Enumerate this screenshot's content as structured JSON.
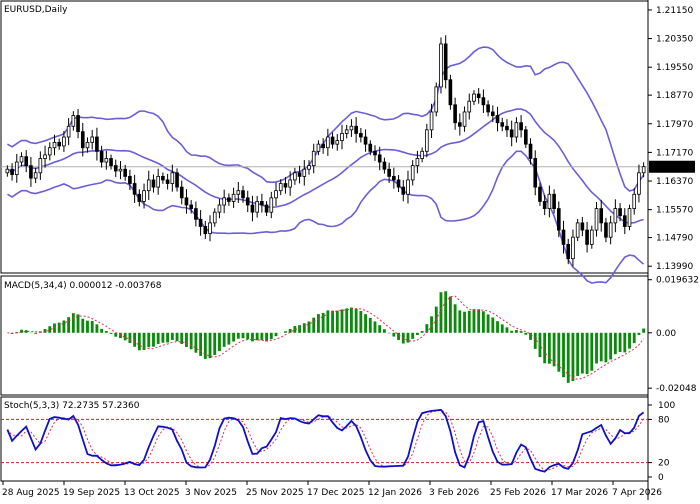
{
  "chart_data": [
    {
      "type": "candlestick",
      "title": "EURUSD,Daily",
      "ylim": [
        1.138,
        1.214
      ],
      "current_price": 1.16769,
      "current_price_label": "1.16769",
      "y_tick_labels": [
        "1.21150",
        "1.20350",
        "1.19550",
        "1.18770",
        "1.17970",
        "1.17170",
        "1.16370",
        "1.15570",
        "1.14790",
        "1.13990"
      ],
      "y_ticks": [
        1.2115,
        1.2035,
        1.1955,
        1.1877,
        1.1797,
        1.1717,
        1.1637,
        1.1557,
        1.1479,
        1.1399
      ],
      "x_tick_labels": [
        "28 Aug 2025",
        "19 Sep 2025",
        "13 Oct 2025",
        "3 Nov 2025",
        "25 Nov 2025",
        "17 Dec 2025",
        "12 Jan 2026",
        "3 Feb 2026",
        "25 Feb 2026",
        "17 Mar 2026",
        "7 Apr 2026"
      ],
      "close": [
        1.167,
        1.1655,
        1.169,
        1.1705,
        1.168,
        1.1645,
        1.166,
        1.17,
        1.171,
        1.173,
        1.1745,
        1.1735,
        1.176,
        1.179,
        1.182,
        1.1775,
        1.173,
        1.1745,
        1.176,
        1.172,
        1.169,
        1.17,
        1.168,
        1.1665,
        1.167,
        1.165,
        1.163,
        1.16,
        1.158,
        1.161,
        1.164,
        1.162,
        1.165,
        1.164,
        1.163,
        1.166,
        1.162,
        1.159,
        1.157,
        1.156,
        1.153,
        1.151,
        1.149,
        1.152,
        1.155,
        1.157,
        1.159,
        1.158,
        1.16,
        1.161,
        1.159,
        1.157,
        1.155,
        1.158,
        1.157,
        1.155,
        1.159,
        1.161,
        1.163,
        1.162,
        1.164,
        1.166,
        1.165,
        1.167,
        1.168,
        1.172,
        1.174,
        1.173,
        1.176,
        1.174,
        1.175,
        1.177,
        1.178,
        1.179,
        1.177,
        1.176,
        1.174,
        1.172,
        1.171,
        1.169,
        1.167,
        1.165,
        1.164,
        1.162,
        1.16,
        1.164,
        1.168,
        1.17,
        1.172,
        1.178,
        1.183,
        1.19,
        1.202,
        1.192,
        1.185,
        1.18,
        1.179,
        1.183,
        1.186,
        1.188,
        1.187,
        1.185,
        1.183,
        1.182,
        1.18,
        1.179,
        1.178,
        1.176,
        1.18,
        1.178,
        1.174,
        1.17,
        1.162,
        1.158,
        1.156,
        1.16,
        1.156,
        1.15,
        1.146,
        1.142,
        1.148,
        1.152,
        1.15,
        1.146,
        1.15,
        1.156,
        1.152,
        1.148,
        1.152,
        1.156,
        1.154,
        1.151,
        1.156,
        1.16,
        1.166,
        1.1677
      ],
      "ma_label": "Bollinger Bands (20,2)"
    },
    {
      "type": "histogram",
      "title": "MACD(5,34,4) 0.000012 -0.003768",
      "ylim": [
        -0.023,
        0.021
      ],
      "y_ticks": [
        0.019632,
        0.0,
        -0.02048
      ],
      "y_tick_labels": [
        "0.019632",
        "0.00",
        "-0.02048"
      ]
    },
    {
      "type": "line",
      "title": "Stoch(5,3,3) 72.2735 57.2360",
      "ylim": [
        0,
        100
      ],
      "levels": [
        80,
        20
      ],
      "y_tick_labels": [
        "100",
        "80",
        "20",
        "0"
      ],
      "y_ticks": [
        100,
        80,
        20,
        0
      ]
    }
  ]
}
